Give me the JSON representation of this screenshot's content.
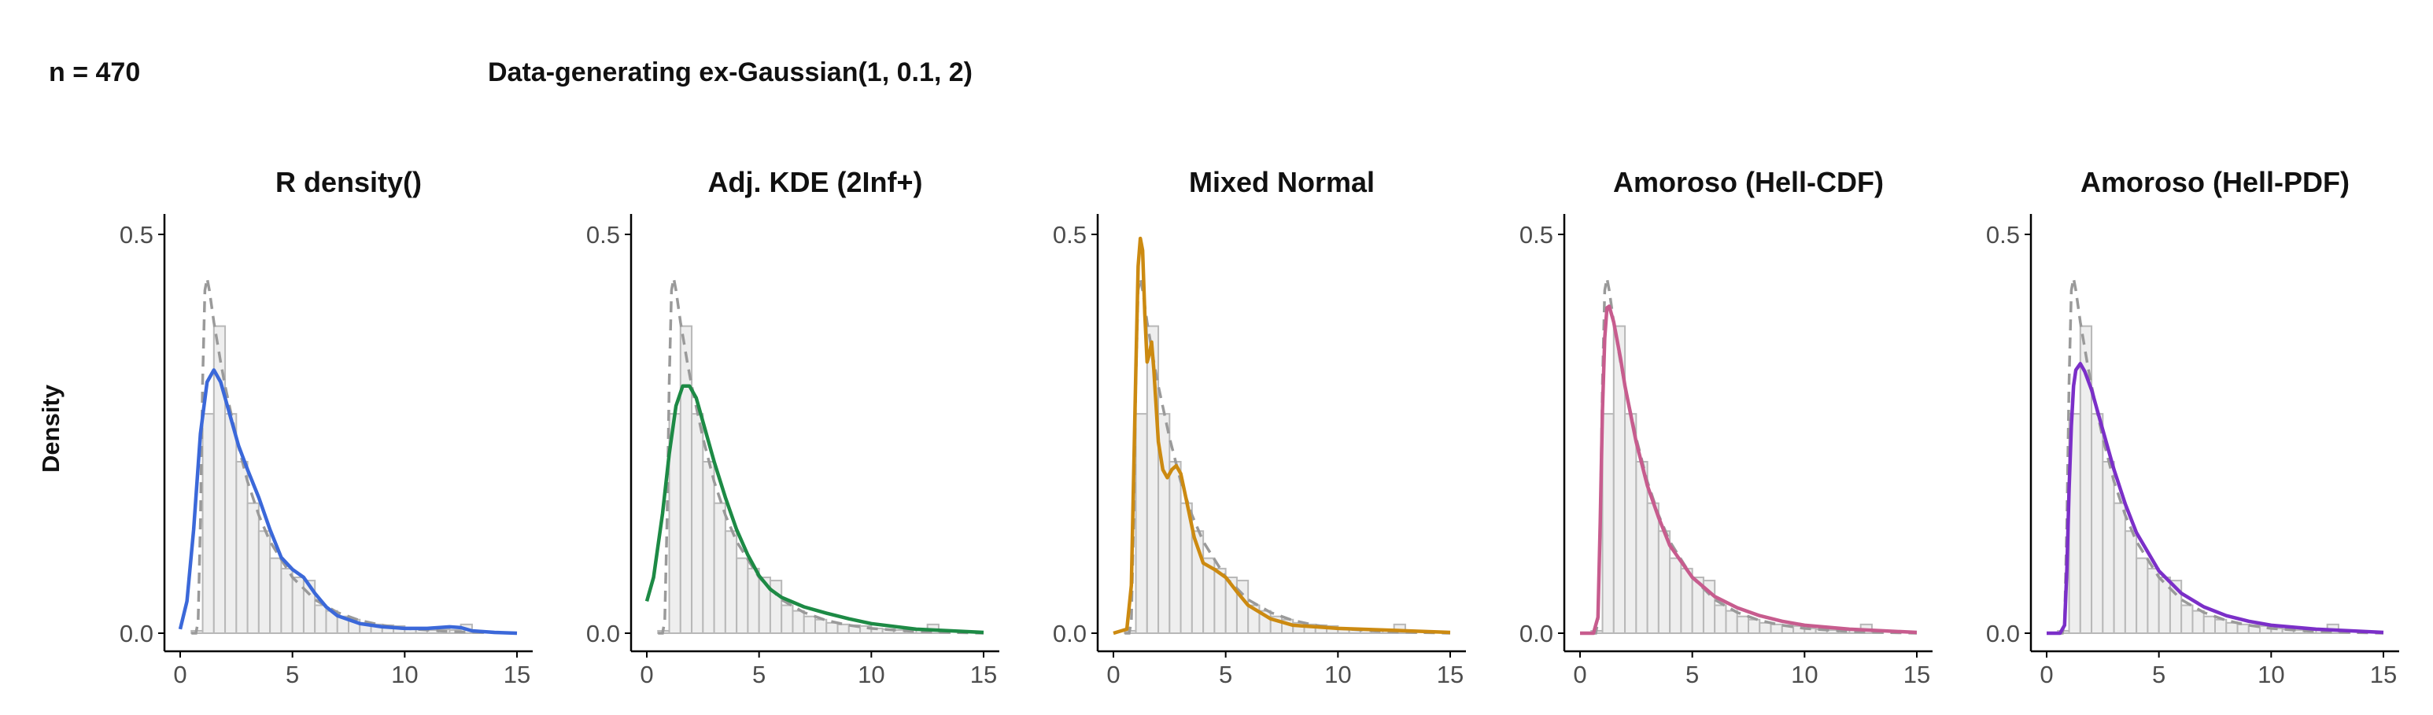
{
  "header": {
    "n_label": "n = 470",
    "title": "Data-generating ex-Gaussian(1, 0.1, 2)"
  },
  "ylabel": "Density",
  "colors": {
    "histogram_fill": "#eeeeee",
    "histogram_stroke": "#b8b8b8",
    "true_density": "#9a9a9a",
    "axis": "#000000"
  },
  "chart_data": {
    "type": "histogram-with-density",
    "xlim": [
      0,
      15
    ],
    "ylim": [
      0,
      0.5
    ],
    "x_ticks": [
      0,
      5,
      10,
      15
    ],
    "y_ticks": [
      0.0,
      0.5
    ],
    "y_tick_labels": [
      "0.0",
      "0.5"
    ],
    "grid": false,
    "histogram": {
      "bin_width": 0.5,
      "bin_start": 0.5,
      "densities": [
        0.003,
        0.275,
        0.385,
        0.275,
        0.215,
        0.163,
        0.128,
        0.094,
        0.081,
        0.07,
        0.066,
        0.035,
        0.028,
        0.021,
        0.017,
        0.013,
        0.011,
        0.01,
        0.009,
        0.006,
        0.005,
        0.004,
        0.005,
        0.004,
        0.011,
        0.003
      ]
    },
    "true_density": {
      "name": "ex-Gaussian(1, 0.1, 2)",
      "x": [
        0.5,
        0.7,
        0.8,
        0.9,
        1.0,
        1.1,
        1.2,
        1.3,
        1.5,
        1.8,
        2.0,
        2.5,
        3.0,
        3.5,
        4.0,
        5.0,
        6.0,
        7.0,
        8.0,
        9.0,
        10.0,
        12.0,
        15.0
      ],
      "y": [
        0.0,
        0.0,
        0.015,
        0.14,
        0.315,
        0.43,
        0.445,
        0.43,
        0.39,
        0.34,
        0.31,
        0.245,
        0.19,
        0.148,
        0.115,
        0.07,
        0.042,
        0.026,
        0.016,
        0.01,
        0.006,
        0.002,
        0.0
      ]
    },
    "panels": [
      {
        "title": "R density()",
        "color": "#3b68d9",
        "x": [
          0.0,
          0.3,
          0.6,
          0.9,
          1.2,
          1.5,
          1.8,
          2.2,
          2.6,
          3.0,
          3.5,
          4.0,
          4.5,
          5.0,
          5.5,
          6.0,
          6.5,
          7.0,
          8.0,
          9.0,
          10.0,
          11.0,
          12.0,
          12.5,
          13.0,
          14.0,
          15.0
        ],
        "y": [
          0.005,
          0.04,
          0.13,
          0.25,
          0.315,
          0.33,
          0.315,
          0.275,
          0.235,
          0.205,
          0.17,
          0.13,
          0.095,
          0.08,
          0.07,
          0.05,
          0.033,
          0.022,
          0.012,
          0.008,
          0.006,
          0.006,
          0.008,
          0.007,
          0.003,
          0.001,
          0.0
        ]
      },
      {
        "title": "Adj. KDE (2Inf+)",
        "color": "#1d8a45",
        "x": [
          0.0,
          0.3,
          0.7,
          1.0,
          1.3,
          1.6,
          1.9,
          2.2,
          2.6,
          3.0,
          3.5,
          4.0,
          4.5,
          5.0,
          5.5,
          6.0,
          7.0,
          8.0,
          9.0,
          10.0,
          12.0,
          15.0
        ],
        "y": [
          0.04,
          0.07,
          0.15,
          0.225,
          0.285,
          0.31,
          0.31,
          0.295,
          0.255,
          0.215,
          0.17,
          0.13,
          0.098,
          0.072,
          0.055,
          0.045,
          0.033,
          0.025,
          0.018,
          0.012,
          0.005,
          0.001
        ]
      },
      {
        "title": "Mixed Normal",
        "color": "#cc8a11",
        "x": [
          0.0,
          0.6,
          0.8,
          1.0,
          1.1,
          1.2,
          1.3,
          1.4,
          1.5,
          1.6,
          1.7,
          1.8,
          2.0,
          2.2,
          2.4,
          2.6,
          2.8,
          3.0,
          3.3,
          3.6,
          4.0,
          4.5,
          5.0,
          5.5,
          6.0,
          7.0,
          8.0,
          9.0,
          10.0,
          12.0,
          15.0
        ],
        "y": [
          0.0,
          0.005,
          0.06,
          0.33,
          0.46,
          0.495,
          0.48,
          0.4,
          0.34,
          0.35,
          0.365,
          0.33,
          0.24,
          0.205,
          0.195,
          0.205,
          0.21,
          0.2,
          0.16,
          0.12,
          0.088,
          0.08,
          0.07,
          0.052,
          0.035,
          0.018,
          0.01,
          0.008,
          0.006,
          0.004,
          0.001
        ]
      },
      {
        "title": "Amoroso (Hell-CDF)",
        "color": "#c75c8e",
        "x": [
          0.0,
          0.6,
          0.8,
          0.9,
          1.0,
          1.1,
          1.2,
          1.3,
          1.5,
          1.8,
          2.0,
          2.5,
          3.0,
          3.5,
          4.0,
          5.0,
          6.0,
          7.0,
          8.0,
          9.0,
          10.0,
          12.0,
          15.0
        ],
        "y": [
          0.0,
          0.0,
          0.02,
          0.14,
          0.28,
          0.37,
          0.408,
          0.41,
          0.39,
          0.345,
          0.31,
          0.24,
          0.185,
          0.145,
          0.11,
          0.07,
          0.046,
          0.032,
          0.022,
          0.015,
          0.01,
          0.005,
          0.001
        ]
      },
      {
        "title": "Amoroso (Hell-PDF)",
        "color": "#7b2fc8",
        "x": [
          0.0,
          0.6,
          0.8,
          0.9,
          1.0,
          1.1,
          1.2,
          1.3,
          1.5,
          1.7,
          2.0,
          2.5,
          3.0,
          3.5,
          4.0,
          5.0,
          6.0,
          7.0,
          8.0,
          9.0,
          10.0,
          12.0,
          15.0
        ],
        "y": [
          0.0,
          0.0,
          0.01,
          0.08,
          0.18,
          0.26,
          0.31,
          0.33,
          0.338,
          0.328,
          0.305,
          0.255,
          0.205,
          0.162,
          0.126,
          0.078,
          0.05,
          0.033,
          0.022,
          0.015,
          0.01,
          0.005,
          0.001
        ]
      }
    ]
  }
}
